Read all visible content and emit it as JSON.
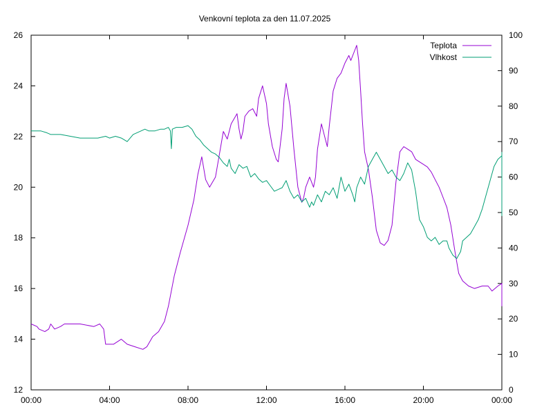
{
  "chart_data": {
    "type": "line",
    "title": "Venkovní teplota za den 11.07.2025",
    "x_ticks": [
      "00:00",
      "04:00",
      "08:00",
      "12:00",
      "16:00",
      "20:00",
      "00:00"
    ],
    "x_range_hours": [
      0,
      24
    ],
    "y_left": {
      "ticks": [
        "12",
        "14",
        "16",
        "18",
        "20",
        "22",
        "24",
        "26"
      ],
      "range": [
        12,
        26
      ]
    },
    "y_right": {
      "ticks": [
        "0",
        "10",
        "20",
        "30",
        "40",
        "50",
        "60",
        "70",
        "80",
        "90",
        "100"
      ],
      "range": [
        0,
        100
      ]
    },
    "grid": false,
    "legend_placement": "top-right",
    "series": [
      {
        "name": "Teplota",
        "axis": "left",
        "color": "#9400d3",
        "points": [
          [
            0.0,
            14.6
          ],
          [
            0.3,
            14.5
          ],
          [
            0.4,
            14.4
          ],
          [
            0.7,
            14.3
          ],
          [
            0.9,
            14.4
          ],
          [
            1.0,
            14.6
          ],
          [
            1.2,
            14.4
          ],
          [
            1.5,
            14.5
          ],
          [
            1.7,
            14.6
          ],
          [
            2.5,
            14.6
          ],
          [
            3.2,
            14.5
          ],
          [
            3.5,
            14.6
          ],
          [
            3.7,
            14.4
          ],
          [
            3.8,
            13.8
          ],
          [
            4.2,
            13.8
          ],
          [
            4.6,
            14.0
          ],
          [
            4.9,
            13.8
          ],
          [
            5.3,
            13.7
          ],
          [
            5.7,
            13.6
          ],
          [
            5.9,
            13.7
          ],
          [
            6.2,
            14.1
          ],
          [
            6.5,
            14.3
          ],
          [
            6.8,
            14.7
          ],
          [
            7.0,
            15.3
          ],
          [
            7.3,
            16.5
          ],
          [
            7.6,
            17.4
          ],
          [
            8.0,
            18.5
          ],
          [
            8.3,
            19.5
          ],
          [
            8.5,
            20.5
          ],
          [
            8.7,
            21.2
          ],
          [
            8.9,
            20.3
          ],
          [
            9.1,
            20.0
          ],
          [
            9.4,
            20.4
          ],
          [
            9.6,
            21.3
          ],
          [
            9.8,
            22.2
          ],
          [
            10.0,
            21.9
          ],
          [
            10.2,
            22.5
          ],
          [
            10.5,
            22.9
          ],
          [
            10.6,
            22.3
          ],
          [
            10.7,
            21.9
          ],
          [
            10.8,
            22.2
          ],
          [
            10.9,
            22.8
          ],
          [
            11.1,
            23.0
          ],
          [
            11.3,
            23.1
          ],
          [
            11.5,
            22.8
          ],
          [
            11.6,
            23.5
          ],
          [
            11.8,
            24.0
          ],
          [
            12.0,
            23.3
          ],
          [
            12.1,
            22.5
          ],
          [
            12.3,
            21.6
          ],
          [
            12.5,
            21.1
          ],
          [
            12.6,
            21.0
          ],
          [
            12.8,
            22.3
          ],
          [
            12.9,
            23.5
          ],
          [
            13.0,
            24.1
          ],
          [
            13.2,
            23.2
          ],
          [
            13.4,
            21.5
          ],
          [
            13.6,
            20.0
          ],
          [
            13.8,
            19.4
          ],
          [
            13.9,
            19.6
          ],
          [
            14.0,
            20.0
          ],
          [
            14.2,
            20.4
          ],
          [
            14.4,
            20.0
          ],
          [
            14.5,
            20.4
          ],
          [
            14.6,
            21.5
          ],
          [
            14.8,
            22.5
          ],
          [
            15.0,
            21.9
          ],
          [
            15.1,
            21.6
          ],
          [
            15.2,
            22.4
          ],
          [
            15.4,
            23.8
          ],
          [
            15.6,
            24.3
          ],
          [
            15.8,
            24.5
          ],
          [
            16.0,
            24.9
          ],
          [
            16.2,
            25.2
          ],
          [
            16.3,
            25.0
          ],
          [
            16.5,
            25.4
          ],
          [
            16.6,
            25.6
          ],
          [
            16.7,
            25.0
          ],
          [
            16.8,
            23.8
          ],
          [
            16.9,
            22.5
          ],
          [
            17.0,
            21.4
          ],
          [
            17.2,
            20.7
          ],
          [
            17.4,
            19.6
          ],
          [
            17.6,
            18.3
          ],
          [
            17.8,
            17.8
          ],
          [
            18.0,
            17.7
          ],
          [
            18.2,
            17.9
          ],
          [
            18.4,
            18.5
          ],
          [
            18.6,
            20.2
          ],
          [
            18.8,
            21.4
          ],
          [
            19.0,
            21.6
          ],
          [
            19.2,
            21.5
          ],
          [
            19.4,
            21.4
          ],
          [
            19.6,
            21.1
          ],
          [
            19.8,
            21.0
          ],
          [
            20.0,
            20.9
          ],
          [
            20.2,
            20.8
          ],
          [
            20.4,
            20.6
          ],
          [
            20.6,
            20.3
          ],
          [
            20.8,
            20.0
          ],
          [
            21.0,
            19.6
          ],
          [
            21.2,
            19.2
          ],
          [
            21.4,
            18.5
          ],
          [
            21.6,
            17.5
          ],
          [
            21.8,
            16.6
          ],
          [
            22.0,
            16.3
          ],
          [
            22.3,
            16.1
          ],
          [
            22.6,
            16.0
          ],
          [
            23.0,
            16.1
          ],
          [
            23.3,
            16.1
          ],
          [
            23.5,
            15.9
          ],
          [
            23.8,
            16.1
          ],
          [
            24.0,
            16.2
          ],
          [
            24.3,
            16.1
          ],
          [
            24.5,
            15.9
          ],
          [
            24.8,
            15.8
          ],
          [
            25.2,
            15.7
          ],
          [
            25.6,
            15.7
          ],
          [
            26.0,
            15.6
          ],
          [
            26.3,
            15.4
          ],
          [
            26.6,
            15.3
          ],
          [
            27.0,
            15.3
          ]
        ]
      },
      {
        "name": "Vlhkost",
        "axis": "right",
        "color": "#009e73",
        "points": [
          [
            0.0,
            73
          ],
          [
            0.5,
            73
          ],
          [
            0.8,
            72.5
          ],
          [
            1.0,
            72
          ],
          [
            1.5,
            72
          ],
          [
            2.0,
            71.5
          ],
          [
            2.5,
            71
          ],
          [
            3.0,
            71
          ],
          [
            3.4,
            71
          ],
          [
            3.8,
            71.5
          ],
          [
            4.0,
            71
          ],
          [
            4.3,
            71.5
          ],
          [
            4.6,
            71
          ],
          [
            4.9,
            70
          ],
          [
            5.2,
            72
          ],
          [
            5.6,
            73
          ],
          [
            5.8,
            73.5
          ],
          [
            6.0,
            73
          ],
          [
            6.3,
            73
          ],
          [
            6.6,
            73.5
          ],
          [
            6.8,
            73.5
          ],
          [
            7.0,
            74
          ],
          [
            7.1,
            73
          ],
          [
            7.15,
            68
          ],
          [
            7.2,
            73.5
          ],
          [
            7.4,
            74
          ],
          [
            7.7,
            74
          ],
          [
            8.0,
            74.5
          ],
          [
            8.2,
            73.5
          ],
          [
            8.4,
            71.5
          ],
          [
            8.6,
            70.5
          ],
          [
            8.8,
            69
          ],
          [
            9.0,
            68
          ],
          [
            9.2,
            67
          ],
          [
            9.4,
            66.5
          ],
          [
            9.6,
            65.5
          ],
          [
            9.8,
            64
          ],
          [
            10.0,
            63
          ],
          [
            10.1,
            65
          ],
          [
            10.2,
            62.5
          ],
          [
            10.4,
            61
          ],
          [
            10.6,
            63.5
          ],
          [
            10.8,
            62.5
          ],
          [
            11.0,
            63
          ],
          [
            11.2,
            60
          ],
          [
            11.4,
            61
          ],
          [
            11.6,
            59.5
          ],
          [
            11.8,
            58.5
          ],
          [
            12.0,
            59
          ],
          [
            12.2,
            57.5
          ],
          [
            12.4,
            56
          ],
          [
            12.6,
            56.5
          ],
          [
            12.8,
            57
          ],
          [
            13.0,
            59
          ],
          [
            13.2,
            56
          ],
          [
            13.4,
            54
          ],
          [
            13.6,
            55
          ],
          [
            13.8,
            53
          ],
          [
            14.0,
            54
          ],
          [
            14.2,
            51.5
          ],
          [
            14.3,
            53
          ],
          [
            14.4,
            52
          ],
          [
            14.6,
            55
          ],
          [
            14.8,
            53
          ],
          [
            15.0,
            56
          ],
          [
            15.2,
            55
          ],
          [
            15.4,
            57
          ],
          [
            15.6,
            54
          ],
          [
            15.8,
            60
          ],
          [
            16.0,
            56
          ],
          [
            16.2,
            58
          ],
          [
            16.4,
            55
          ],
          [
            16.5,
            53
          ],
          [
            16.6,
            57
          ],
          [
            16.8,
            60
          ],
          [
            17.0,
            58
          ],
          [
            17.2,
            63
          ],
          [
            17.4,
            65
          ],
          [
            17.6,
            67
          ],
          [
            17.8,
            65
          ],
          [
            18.0,
            63
          ],
          [
            18.2,
            61
          ],
          [
            18.4,
            62
          ],
          [
            18.6,
            60
          ],
          [
            18.8,
            59
          ],
          [
            19.0,
            61
          ],
          [
            19.2,
            64
          ],
          [
            19.4,
            62
          ],
          [
            19.6,
            56
          ],
          [
            19.8,
            48
          ],
          [
            20.0,
            46
          ],
          [
            20.2,
            43
          ],
          [
            20.4,
            42
          ],
          [
            20.6,
            43
          ],
          [
            20.8,
            41
          ],
          [
            21.0,
            42
          ],
          [
            21.2,
            42
          ],
          [
            21.3,
            40
          ],
          [
            21.5,
            38
          ],
          [
            21.7,
            37
          ],
          [
            21.9,
            39
          ],
          [
            22.0,
            42
          ],
          [
            22.2,
            43
          ],
          [
            22.4,
            44
          ],
          [
            22.6,
            46
          ],
          [
            22.8,
            48
          ],
          [
            23.0,
            51
          ],
          [
            23.2,
            55
          ],
          [
            23.4,
            59
          ],
          [
            23.6,
            63
          ],
          [
            23.8,
            65
          ],
          [
            24.0,
            66
          ],
          [
            24.2,
            67
          ],
          [
            24.4,
            65
          ],
          [
            24.6,
            63
          ],
          [
            24.8,
            61
          ],
          [
            25.0,
            60
          ],
          [
            25.2,
            59
          ],
          [
            25.4,
            58
          ],
          [
            25.6,
            57
          ],
          [
            25.8,
            55
          ],
          [
            26.0,
            54
          ],
          [
            26.2,
            53
          ],
          [
            26.4,
            52
          ],
          [
            26.6,
            51
          ],
          [
            26.8,
            50
          ],
          [
            27.0,
            49
          ]
        ]
      }
    ]
  }
}
